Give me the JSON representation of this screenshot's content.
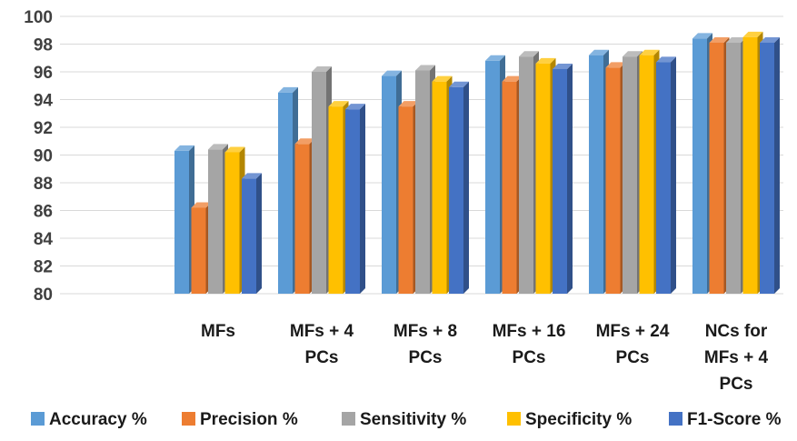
{
  "chart_data": {
    "type": "bar",
    "title": "",
    "xlabel": "",
    "ylabel": "",
    "ylim": [
      80,
      100
    ],
    "yticks": [
      80,
      82,
      84,
      86,
      88,
      90,
      92,
      94,
      96,
      98,
      100
    ],
    "grid": true,
    "legend_position": "bottom",
    "categories": [
      [
        "MFs"
      ],
      [
        "MFs + 4",
        "PCs"
      ],
      [
        "MFs + 8",
        "PCs"
      ],
      [
        "MFs + 16",
        "PCs"
      ],
      [
        "MFs + 24",
        "PCs"
      ],
      [
        "NCs for",
        "MFs + 4",
        "PCs"
      ]
    ],
    "series": [
      {
        "name": "Accuracy %",
        "color": "#5B9BD5",
        "values": [
          90.3,
          94.5,
          95.7,
          96.8,
          97.2,
          98.4
        ]
      },
      {
        "name": "Precision %",
        "color": "#ED7D31",
        "values": [
          86.2,
          90.8,
          93.5,
          95.3,
          96.3,
          98.1
        ]
      },
      {
        "name": "Sensitivity %",
        "color": "#A5A5A5",
        "values": [
          90.4,
          96.0,
          96.1,
          97.1,
          97.1,
          98.1
        ]
      },
      {
        "name": "Specificity %",
        "color": "#FFC000",
        "values": [
          90.2,
          93.5,
          95.3,
          96.6,
          97.2,
          98.5
        ]
      },
      {
        "name": "F1-Score %",
        "color": "#4472C4",
        "values": [
          88.3,
          93.3,
          94.9,
          96.2,
          96.7,
          98.1
        ]
      }
    ]
  }
}
